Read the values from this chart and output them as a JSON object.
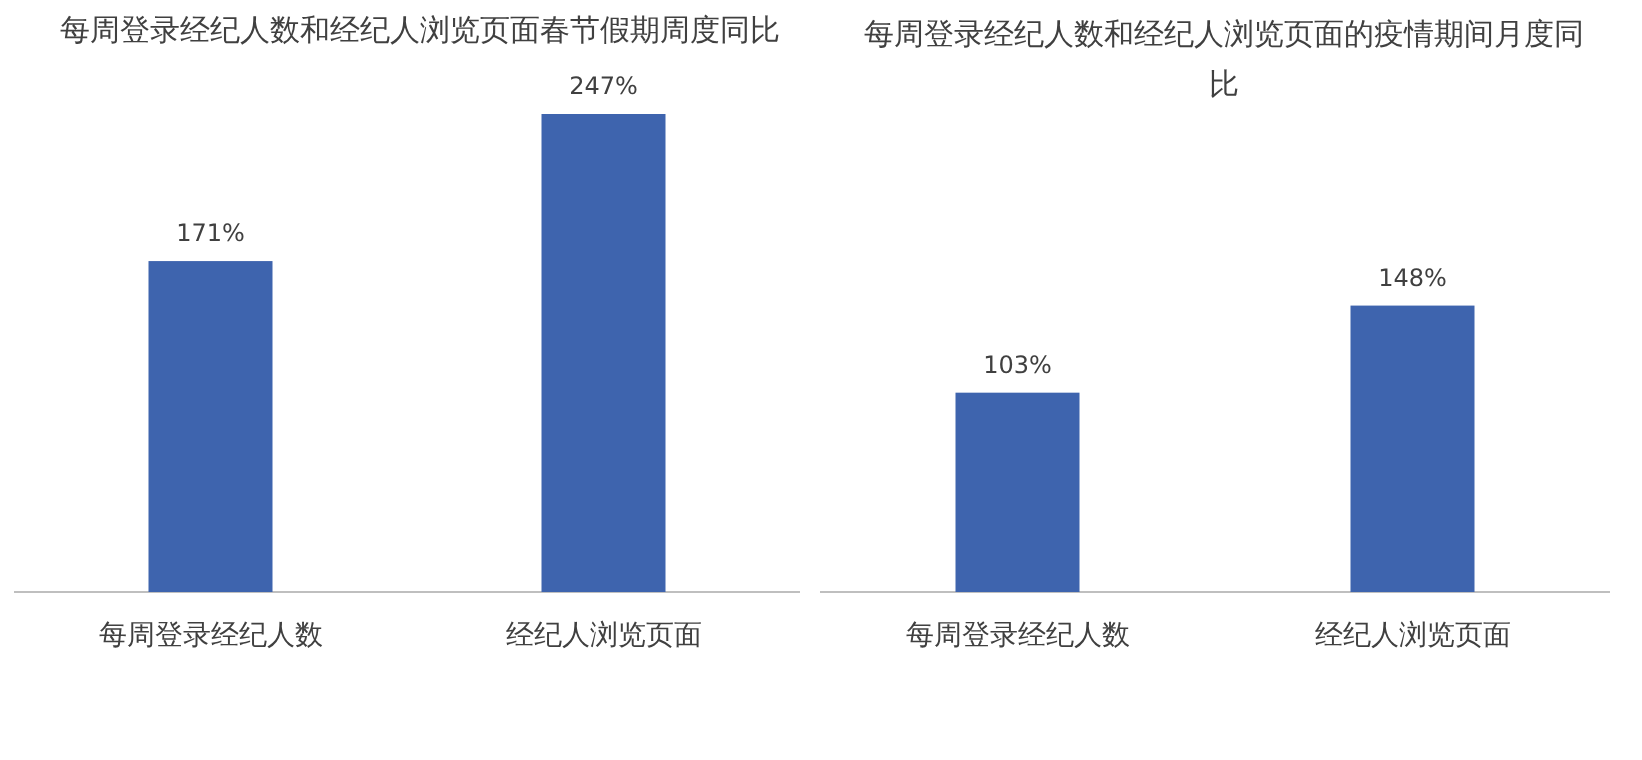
{
  "chart_data": [
    {
      "type": "bar",
      "title": "每周登录经纪人数和经纪人浏览页面春节假期周度同比",
      "categories": [
        "每周登录经纪人数",
        "经纪人浏览页面"
      ],
      "values": [
        171,
        247
      ],
      "value_labels": [
        "171%",
        "247%"
      ],
      "color": "#3e64ae"
    },
    {
      "type": "bar",
      "title": "每周登录经纪人数和经纪人浏览页面的疫情期间月度同比",
      "categories": [
        "每周登录经纪人数",
        "经纪人浏览页面"
      ],
      "values": [
        103,
        148
      ],
      "value_labels": [
        "103%",
        "148%"
      ],
      "color": "#3e64ae"
    }
  ]
}
